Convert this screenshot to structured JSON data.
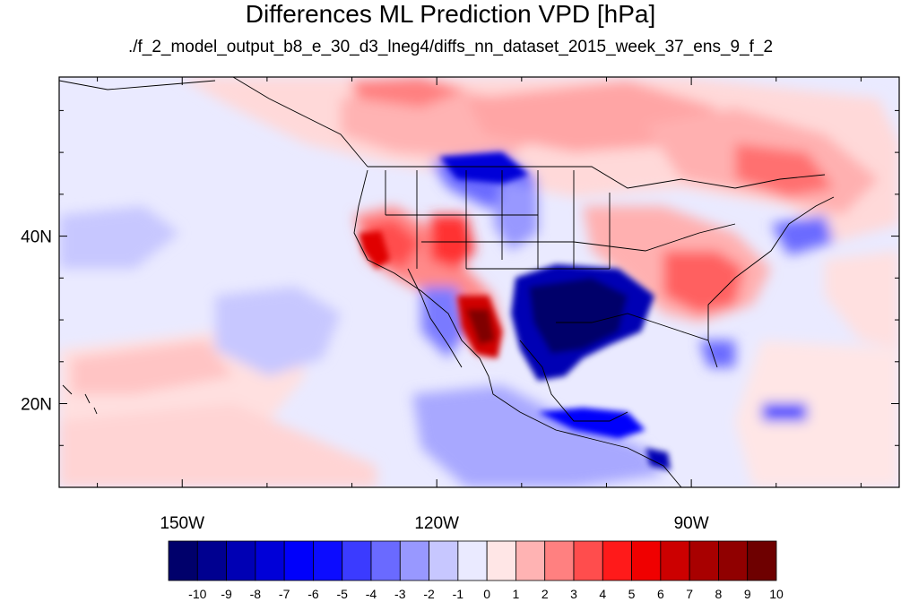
{
  "title": "Differences ML Prediction VPD [hPa]",
  "subtitle": "./f_2_model_output_b8_e_30_d3_lneg4/diffs_nn_dataset_2015_week_37_ens_9_f_2",
  "map": {
    "projection": "cylindrical equidistant",
    "lon_range": [
      -164.5,
      -65.5
    ],
    "lat_range": [
      10,
      59
    ],
    "lon_ticks": [
      {
        "value": -150,
        "label": "150W"
      },
      {
        "value": -120,
        "label": "120W"
      },
      {
        "value": -90,
        "label": "90W"
      }
    ],
    "lat_ticks": [
      {
        "value": 40,
        "label": "40N"
      },
      {
        "value": 20,
        "label": "20N"
      }
    ]
  },
  "colorbar": {
    "labels": [
      "-10",
      "-9",
      "-8",
      "-7",
      "-6",
      "-5",
      "-4",
      "-3",
      "-2",
      "-1",
      "0",
      "1",
      "2",
      "3",
      "4",
      "5",
      "6",
      "7",
      "8",
      "9",
      "10"
    ],
    "colors": [
      "#00006b",
      "#000090",
      "#0000b4",
      "#0000d8",
      "#0000fb",
      "#0c0cff",
      "#3b3bff",
      "#6a6aff",
      "#9898ff",
      "#c7c7ff",
      "#eaeaff",
      "#ffe6e6",
      "#ffb3b3",
      "#ff8080",
      "#ff4d4d",
      "#ff1a1a",
      "#f00000",
      "#cc0000",
      "#a80000",
      "#900000",
      "#6e0000"
    ]
  }
}
